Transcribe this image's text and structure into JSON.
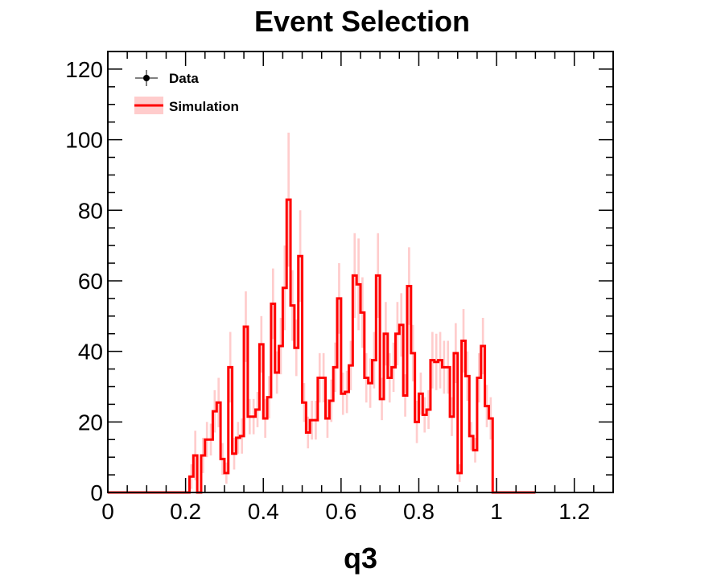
{
  "chart_data": {
    "type": "histogram",
    "title": "Event Selection",
    "xlabel": "q3",
    "ylabel": "",
    "xlim": [
      0,
      1.3
    ],
    "ylim": [
      0,
      125
    ],
    "x_ticks": [
      {
        "value": 0,
        "label": "0"
      },
      {
        "value": 0.2,
        "label": "0.2"
      },
      {
        "value": 0.4,
        "label": "0.4"
      },
      {
        "value": 0.6,
        "label": "0.6"
      },
      {
        "value": 0.8,
        "label": "0.8"
      },
      {
        "value": 1.0,
        "label": "1"
      },
      {
        "value": 1.2,
        "label": "1.2"
      }
    ],
    "y_ticks": [
      {
        "value": 0,
        "label": "0"
      },
      {
        "value": 20,
        "label": "20"
      },
      {
        "value": 40,
        "label": "40"
      },
      {
        "value": 60,
        "label": "60"
      },
      {
        "value": 80,
        "label": "80"
      },
      {
        "value": 100,
        "label": "100"
      },
      {
        "value": 120,
        "label": "120"
      }
    ],
    "bin_width": 0.01,
    "bin_start": 0,
    "series": [
      {
        "name": "Simulation",
        "color": "#ff0000",
        "band_color": "#ffcccc",
        "values": [
          0,
          0,
          0,
          0,
          0,
          0,
          0,
          0,
          0,
          0,
          0,
          0,
          0,
          0,
          0,
          0,
          0,
          0,
          0,
          0,
          0,
          4.5,
          10.5,
          0,
          10.5,
          15,
          15,
          23,
          25.5,
          9.5,
          5.5,
          35.5,
          11,
          15.5,
          16,
          47,
          21.5,
          21.5,
          23.5,
          42,
          21,
          27,
          53.5,
          34,
          41.5,
          58,
          83,
          53,
          41,
          67,
          25.5,
          17,
          20.5,
          20.5,
          32.5,
          32.5,
          21,
          26,
          35.5,
          55,
          28,
          28.5,
          36,
          61.5,
          59,
          51,
          32.5,
          31,
          37.5,
          61.5,
          26.5,
          45,
          32.5,
          35.5,
          45,
          47.5,
          27.5,
          58.5,
          39.5,
          20,
          28,
          22,
          23.5,
          37.5,
          37,
          37.5,
          35.5,
          35.5,
          21.5,
          39.5,
          5.5,
          43,
          33,
          16,
          12,
          32.5,
          41.5,
          24.5,
          21,
          0,
          0,
          0,
          0,
          0,
          0,
          0,
          0,
          0,
          0,
          0
        ],
        "errors": [
          0,
          0,
          0,
          0,
          0,
          0,
          0,
          0,
          0,
          0,
          0,
          0,
          0,
          0,
          0,
          0,
          0,
          0,
          0,
          0,
          0,
          3.5,
          7,
          0,
          5,
          5,
          4.5,
          6,
          7,
          4.5,
          3,
          10,
          4.5,
          4.5,
          5,
          10,
          5,
          5,
          5,
          8,
          5.5,
          6,
          10,
          6,
          8,
          12,
          19,
          10,
          8,
          13,
          5.5,
          4.5,
          5.5,
          5.5,
          7,
          7,
          5.5,
          6,
          7,
          10,
          6,
          6,
          7,
          12,
          13,
          10,
          7,
          7,
          8,
          12,
          6,
          9,
          7,
          7,
          9,
          9,
          6,
          11,
          8,
          6,
          6,
          5,
          5.5,
          8,
          8,
          8,
          7.5,
          7.5,
          5.5,
          8.5,
          2.5,
          9,
          7,
          4,
          3.5,
          7,
          8,
          6,
          6,
          0,
          0,
          0,
          0,
          0,
          0,
          0,
          0,
          0,
          0,
          0
        ]
      }
    ],
    "legend": {
      "position": "top-left",
      "entries": [
        {
          "label": "Data",
          "style": "marker-with-error-bar",
          "color": "#000000"
        },
        {
          "label": "Simulation",
          "style": "line-with-band",
          "color": "#ff0000"
        }
      ]
    }
  }
}
